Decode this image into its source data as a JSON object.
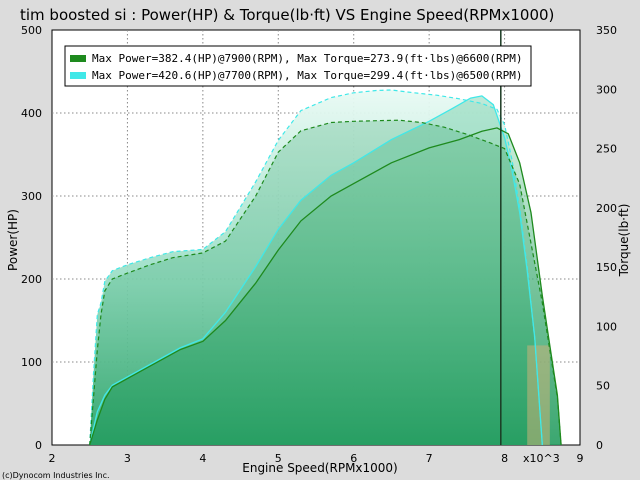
{
  "chart_data": {
    "type": "line",
    "title": "tim boosted si : Power(HP) & Torque(lb·ft) VS Engine Speed(RPMx1000)",
    "xlabel": "Engine Speed(RPMx1000)",
    "ylabel_left": "Power(HP)",
    "ylabel_right": "Torque(lb·ft)",
    "x_multiplier_label": "x10^3",
    "copyright": "(c)Dynocom Industries Inc.",
    "xlim": [
      2,
      9
    ],
    "ylim_left": [
      0,
      500
    ],
    "ylim_right": [
      0,
      350
    ],
    "x_ticks": [
      "2",
      "3",
      "4",
      "5",
      "6",
      "7",
      "8",
      "9"
    ],
    "y_left_ticks": [
      "0",
      "100",
      "200",
      "300",
      "400",
      "500"
    ],
    "y_right_ticks": [
      "0",
      "50",
      "100",
      "150",
      "200",
      "250",
      "300",
      "350"
    ],
    "grid": true,
    "legend_position": "top-left",
    "marker_rpm": 7.95,
    "series": [
      {
        "name": "Max Power=382.4(HP)@7900(RPM), Max Torque=273.9(ft·lbs)@6600(RPM)",
        "color": "#1e8a1e",
        "power": {
          "x": [
            2.5,
            2.55,
            2.6,
            2.7,
            2.8,
            3.0,
            3.3,
            3.7,
            4.0,
            4.3,
            4.7,
            5.0,
            5.3,
            5.7,
            6.0,
            6.5,
            7.0,
            7.4,
            7.7,
            7.9,
            8.05,
            8.2,
            8.35,
            8.5,
            8.6,
            8.65,
            8.7,
            8.75
          ],
          "y": [
            0,
            15,
            30,
            55,
            70,
            80,
            95,
            115,
            125,
            150,
            195,
            235,
            270,
            300,
            315,
            340,
            358,
            368,
            378,
            382,
            375,
            340,
            280,
            180,
            120,
            90,
            60,
            0
          ]
        },
        "torque": {
          "x": [
            2.5,
            2.55,
            2.6,
            2.65,
            2.7,
            2.8,
            3.0,
            3.3,
            3.6,
            4.0,
            4.3,
            4.7,
            5.0,
            5.3,
            5.7,
            6.0,
            6.3,
            6.6,
            6.9,
            7.2,
            7.5,
            7.8,
            8.0,
            8.2,
            8.35,
            8.5,
            8.6,
            8.65,
            8.7,
            8.75
          ],
          "y": [
            0,
            40,
            80,
            110,
            130,
            140,
            145,
            152,
            158,
            162,
            172,
            210,
            247,
            265,
            272,
            273,
            273.5,
            273.9,
            272,
            268,
            262,
            255,
            250,
            220,
            170,
            120,
            80,
            60,
            40,
            0
          ]
        }
      },
      {
        "name": "Max Power=420.6(HP)@7700(RPM), Max Torque=299.4(ft·lbs)@6500(RPM)",
        "color": "#40e8e8",
        "power": {
          "x": [
            2.5,
            2.55,
            2.6,
            2.7,
            2.8,
            3.0,
            3.3,
            3.7,
            4.0,
            4.3,
            4.7,
            5.0,
            5.3,
            5.7,
            6.0,
            6.5,
            7.0,
            7.3,
            7.55,
            7.7,
            7.85,
            8.0,
            8.1,
            8.2,
            8.3,
            8.4,
            8.5
          ],
          "y": [
            0,
            20,
            40,
            60,
            72,
            82,
            97,
            117,
            128,
            160,
            215,
            260,
            295,
            325,
            340,
            368,
            390,
            405,
            418,
            420.6,
            410,
            370,
            330,
            280,
            210,
            130,
            0
          ]
        },
        "torque": {
          "x": [
            2.5,
            2.55,
            2.6,
            2.65,
            2.7,
            2.8,
            3.0,
            3.3,
            3.6,
            4.0,
            4.3,
            4.7,
            5.0,
            5.3,
            5.7,
            6.0,
            6.3,
            6.5,
            6.8,
            7.1,
            7.4,
            7.7,
            7.9,
            8.0,
            8.1,
            8.2,
            8.3,
            8.4,
            8.5
          ],
          "y": [
            0,
            60,
            110,
            120,
            138,
            147,
            152,
            158,
            163,
            165,
            180,
            222,
            257,
            282,
            293,
            297,
            299,
            299.4,
            297,
            295,
            292,
            288,
            283,
            270,
            240,
            200,
            150,
            90,
            0
          ]
        }
      }
    ]
  }
}
